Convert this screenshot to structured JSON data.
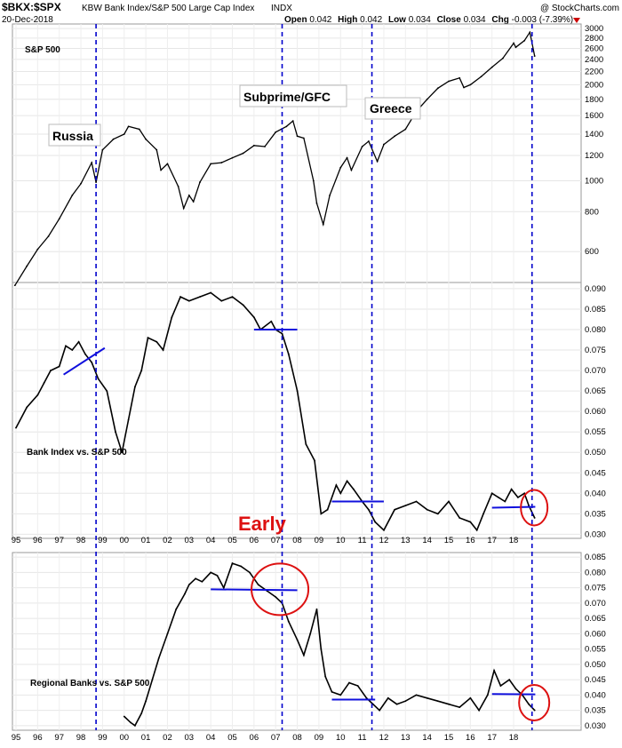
{
  "header": {
    "symbol": "$BKX:$SPX",
    "description": "KBW Bank Index/S&P 500 Large Cap Index",
    "exchange": "INDX",
    "date": "20-Dec-2018",
    "open_label": "Open",
    "open": "0.042",
    "high_label": "High",
    "high": "0.042",
    "low_label": "Low",
    "low": "0.034",
    "close_label": "Close",
    "close": "0.034",
    "chg_label": "Chg",
    "chg": "-0.003 (-7.39%)",
    "watermark": "@ StockCharts.com"
  },
  "colors": {
    "price": "#000000",
    "event_line": "#0000cc",
    "trend_line": "#1010dd",
    "circle": "#dd1111",
    "early": "#dd1111"
  },
  "chart_data": [
    {
      "type": "line",
      "panel": "top",
      "title": "S&P 500",
      "scale": "log",
      "ylim": [
        480,
        3100
      ],
      "yticks": [
        600,
        800,
        1000,
        1200,
        1400,
        1600,
        1800,
        2000,
        2200,
        2400,
        2600,
        2800,
        3000
      ],
      "x": [
        1994.95,
        1995.5,
        1996.0,
        1996.5,
        1997.0,
        1997.6,
        1998.0,
        1998.5,
        1998.7,
        1999.0,
        1999.5,
        2000.0,
        2000.2,
        2000.7,
        2001.0,
        2001.5,
        2001.7,
        2002.0,
        2002.5,
        2002.75,
        2003.0,
        2003.2,
        2003.5,
        2004.0,
        2004.5,
        2005.0,
        2005.5,
        2006.0,
        2006.5,
        2007.0,
        2007.5,
        2007.8,
        2008.0,
        2008.3,
        2008.75,
        2008.9,
        2009.2,
        2009.5,
        2010.0,
        2010.3,
        2010.5,
        2011.0,
        2011.3,
        2011.7,
        2012.0,
        2012.5,
        2013.0,
        2013.5,
        2014.0,
        2014.5,
        2015.0,
        2015.5,
        2015.7,
        2016.0,
        2016.5,
        2017.0,
        2017.5,
        2018.0,
        2018.1,
        2018.5,
        2018.75,
        2018.97
      ],
      "values": [
        470,
        540,
        610,
        670,
        760,
        900,
        980,
        1140,
        990,
        1250,
        1350,
        1400,
        1480,
        1450,
        1350,
        1250,
        1080,
        1130,
        960,
        820,
        900,
        860,
        990,
        1130,
        1140,
        1180,
        1220,
        1290,
        1280,
        1420,
        1480,
        1540,
        1380,
        1360,
        1000,
        850,
        730,
        900,
        1100,
        1180,
        1080,
        1280,
        1330,
        1150,
        1300,
        1380,
        1450,
        1650,
        1800,
        1950,
        2050,
        2100,
        1960,
        2000,
        2120,
        2270,
        2420,
        2700,
        2620,
        2750,
        2920,
        2460
      ],
      "annotations": [
        "Russia",
        "Subprime/GFC",
        "Greece"
      ]
    },
    {
      "type": "line",
      "panel": "middle",
      "title": "Bank Index vs. S&P 500",
      "ylim": [
        0.029,
        0.0915
      ],
      "yticks": [
        0.03,
        0.035,
        0.04,
        0.045,
        0.05,
        0.055,
        0.06,
        0.065,
        0.07,
        0.075,
        0.08,
        0.085,
        0.09
      ],
      "ytick_labels": [
        "0.030",
        "0.035",
        "0.040",
        "0.045",
        "0.050",
        "0.055",
        "0.060",
        "0.065",
        "0.070",
        "0.075",
        "0.080",
        "0.085",
        "0.090"
      ],
      "x": [
        1995.0,
        1995.5,
        1996.0,
        1996.3,
        1996.6,
        1997.0,
        1997.3,
        1997.6,
        1997.9,
        1998.2,
        1998.5,
        1998.8,
        1999.2,
        1999.6,
        1999.9,
        2000.2,
        2000.5,
        2000.8,
        2001.1,
        2001.5,
        2001.8,
        2002.2,
        2002.6,
        2003.0,
        2003.5,
        2004.0,
        2004.5,
        2005.0,
        2005.5,
        2006.0,
        2006.3,
        2006.8,
        2007.0,
        2007.3,
        2007.6,
        2008.0,
        2008.4,
        2008.8,
        2009.1,
        2009.4,
        2009.8,
        2010.0,
        2010.3,
        2010.6,
        2011.0,
        2011.3,
        2011.6,
        2012.0,
        2012.5,
        2013.0,
        2013.5,
        2014.0,
        2014.5,
        2015.0,
        2015.5,
        2016.0,
        2016.3,
        2016.6,
        2017.0,
        2017.3,
        2017.6,
        2017.9,
        2018.2,
        2018.5,
        2018.7,
        2018.97
      ],
      "values": [
        0.056,
        0.061,
        0.064,
        0.067,
        0.07,
        0.071,
        0.076,
        0.075,
        0.077,
        0.074,
        0.072,
        0.068,
        0.065,
        0.055,
        0.05,
        0.058,
        0.066,
        0.07,
        0.078,
        0.077,
        0.075,
        0.083,
        0.088,
        0.087,
        0.088,
        0.089,
        0.087,
        0.088,
        0.086,
        0.083,
        0.08,
        0.082,
        0.08,
        0.079,
        0.074,
        0.065,
        0.052,
        0.048,
        0.035,
        0.036,
        0.042,
        0.04,
        0.043,
        0.041,
        0.038,
        0.036,
        0.033,
        0.031,
        0.036,
        0.037,
        0.038,
        0.036,
        0.035,
        0.038,
        0.034,
        0.033,
        0.031,
        0.035,
        0.04,
        0.039,
        0.038,
        0.041,
        0.039,
        0.04,
        0.037,
        0.034
      ],
      "label": "Early"
    },
    {
      "type": "line",
      "panel": "bottom",
      "title": "Regional Banks vs. S&P 500",
      "ylim": [
        0.0285,
        0.0865
      ],
      "yticks": [
        0.03,
        0.035,
        0.04,
        0.045,
        0.05,
        0.055,
        0.06,
        0.065,
        0.07,
        0.075,
        0.08,
        0.085
      ],
      "ytick_labels": [
        "0.030",
        "0.035",
        "0.040",
        "0.045",
        "0.050",
        "0.055",
        "0.060",
        "0.065",
        "0.070",
        "0.075",
        "0.080",
        "0.085"
      ],
      "x": [
        2000.0,
        2000.3,
        2000.5,
        2000.8,
        2001.0,
        2001.3,
        2001.6,
        2002.0,
        2002.4,
        2002.8,
        2003.0,
        2003.3,
        2003.6,
        2004.0,
        2004.3,
        2004.6,
        2005.0,
        2005.4,
        2005.8,
        2006.2,
        2006.6,
        2007.0,
        2007.3,
        2007.6,
        2008.0,
        2008.3,
        2008.6,
        2008.9,
        2009.1,
        2009.3,
        2009.6,
        2010.0,
        2010.4,
        2010.8,
        2011.2,
        2011.5,
        2011.8,
        2012.2,
        2012.6,
        2013.0,
        2013.5,
        2014.0,
        2014.5,
        2015.0,
        2015.5,
        2016.0,
        2016.4,
        2016.8,
        2017.1,
        2017.4,
        2017.8,
        2018.1,
        2018.4,
        2018.7,
        2018.97
      ],
      "values": [
        0.033,
        0.031,
        0.03,
        0.034,
        0.038,
        0.045,
        0.052,
        0.06,
        0.068,
        0.073,
        0.076,
        0.078,
        0.077,
        0.08,
        0.079,
        0.075,
        0.083,
        0.082,
        0.08,
        0.076,
        0.074,
        0.072,
        0.07,
        0.064,
        0.058,
        0.053,
        0.06,
        0.068,
        0.055,
        0.046,
        0.041,
        0.04,
        0.044,
        0.043,
        0.039,
        0.037,
        0.035,
        0.039,
        0.037,
        0.038,
        0.04,
        0.039,
        0.038,
        0.037,
        0.036,
        0.039,
        0.035,
        0.04,
        0.048,
        0.043,
        0.045,
        0.042,
        0.04,
        0.037,
        0.035
      ]
    }
  ],
  "x_axis": {
    "labels": [
      "95",
      "96",
      "97",
      "98",
      "99",
      "00",
      "01",
      "02",
      "03",
      "04",
      "05",
      "06",
      "07",
      "08",
      "09",
      "10",
      "11",
      "12",
      "13",
      "14",
      "15",
      "16",
      "17",
      "18"
    ]
  }
}
